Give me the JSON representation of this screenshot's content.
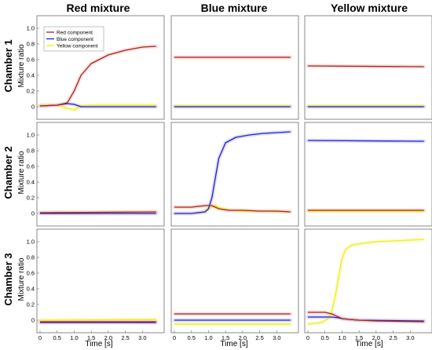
{
  "colors": {
    "red": "#a3261a",
    "blue": "#1f1fd0",
    "yellow": "#f0f000",
    "red_band": "#f6c6c6",
    "blue_band": "#c8c8f6",
    "yellow_band": "#f8f8bc"
  },
  "legend": [
    "Red component",
    "Blue component",
    "Yellow component"
  ],
  "col_titles": [
    "Red mixture",
    "Blue mixture",
    "Yellow mixture"
  ],
  "row_titles": [
    "Chamber 1",
    "Chamber 2",
    "Chamber 3"
  ],
  "ylabel": "Mixture ratio",
  "xlabel": "Time [s]",
  "xticks": [
    "0",
    "0.5",
    "1.0",
    "1.5",
    "2.0",
    "2.5",
    "3.0"
  ],
  "yticks": [
    "0",
    "0.2",
    "0.4",
    "0.6",
    "0.8",
    "1.0"
  ],
  "chart_data": [
    {
      "type": "line",
      "chamber": "Chamber 1",
      "mixture": "Red mixture",
      "xlim": [
        0,
        3.5
      ],
      "ylim": [
        -0.1,
        1.1
      ],
      "legend_position": "top-left",
      "series": [
        {
          "name": "Red component",
          "x": [
            0,
            0.5,
            0.8,
            1.0,
            1.2,
            1.5,
            2.0,
            2.5,
            3.0,
            3.4
          ],
          "values": [
            0.01,
            0.02,
            0.05,
            0.2,
            0.4,
            0.55,
            0.66,
            0.72,
            0.76,
            0.77
          ]
        },
        {
          "name": "Blue component",
          "x": [
            0,
            0.5,
            0.8,
            1.0,
            1.2,
            1.5,
            2.0,
            3.4
          ],
          "values": [
            0.01,
            0.02,
            0.04,
            0.03,
            0.0,
            0.0,
            0.0,
            0.0
          ]
        },
        {
          "name": "Yellow component",
          "x": [
            0,
            0.5,
            0.8,
            1.0,
            1.2,
            1.5,
            2.0,
            3.4
          ],
          "values": [
            0.02,
            0.02,
            -0.02,
            -0.04,
            0.01,
            0.02,
            0.02,
            0.02
          ]
        }
      ]
    },
    {
      "type": "line",
      "chamber": "Chamber 1",
      "mixture": "Blue mixture",
      "xlim": [
        0,
        3.5
      ],
      "ylim": [
        -0.1,
        1.1
      ],
      "series": [
        {
          "name": "Red component",
          "x": [
            0,
            3.4
          ],
          "values": [
            0.63,
            0.63
          ]
        },
        {
          "name": "Blue component",
          "x": [
            0,
            3.4
          ],
          "values": [
            0.0,
            0.0
          ]
        },
        {
          "name": "Yellow component",
          "x": [
            0,
            3.4
          ],
          "values": [
            0.01,
            0.01
          ]
        }
      ]
    },
    {
      "type": "line",
      "chamber": "Chamber 1",
      "mixture": "Yellow mixture",
      "xlim": [
        0,
        3.5
      ],
      "ylim": [
        -0.1,
        1.1
      ],
      "series": [
        {
          "name": "Red component",
          "x": [
            0,
            3.4
          ],
          "values": [
            0.52,
            0.51
          ]
        },
        {
          "name": "Blue component",
          "x": [
            0,
            3.4
          ],
          "values": [
            0.0,
            0.0
          ]
        },
        {
          "name": "Yellow component",
          "x": [
            0,
            3.4
          ],
          "values": [
            0.01,
            0.01
          ]
        }
      ]
    },
    {
      "type": "line",
      "chamber": "Chamber 2",
      "mixture": "Red mixture",
      "xlim": [
        0,
        3.5
      ],
      "ylim": [
        -0.1,
        1.1
      ],
      "series": [
        {
          "name": "Red component",
          "x": [
            0,
            3.4
          ],
          "values": [
            0.01,
            0.02
          ]
        },
        {
          "name": "Blue component",
          "x": [
            0,
            3.4
          ],
          "values": [
            0.0,
            0.0
          ]
        },
        {
          "name": "Yellow component",
          "x": [
            0,
            3.4
          ],
          "values": [
            0.01,
            0.02
          ]
        }
      ]
    },
    {
      "type": "line",
      "chamber": "Chamber 2",
      "mixture": "Blue mixture",
      "xlim": [
        0,
        3.5
      ],
      "ylim": [
        -0.1,
        1.1
      ],
      "series": [
        {
          "name": "Red component",
          "x": [
            0,
            0.5,
            0.9,
            1.1,
            1.3,
            1.6,
            2.0,
            2.5,
            3.0,
            3.4
          ],
          "values": [
            0.08,
            0.08,
            0.1,
            0.1,
            0.06,
            0.04,
            0.04,
            0.03,
            0.03,
            0.02
          ]
        },
        {
          "name": "Blue component",
          "x": [
            0,
            0.5,
            0.9,
            1.0,
            1.1,
            1.2,
            1.3,
            1.5,
            1.8,
            2.2,
            2.6,
            3.0,
            3.4
          ],
          "values": [
            0.0,
            0.0,
            0.02,
            0.06,
            0.2,
            0.45,
            0.7,
            0.9,
            0.97,
            1.0,
            1.02,
            1.03,
            1.04
          ]
        },
        {
          "name": "Yellow component",
          "x": [
            0,
            0.5,
            0.8,
            1.0,
            1.2,
            1.4,
            1.7,
            2.0,
            2.5,
            3.4
          ],
          "values": [
            0.0,
            0.0,
            0.01,
            0.06,
            0.1,
            0.06,
            0.04,
            0.03,
            0.03,
            0.02
          ]
        }
      ]
    },
    {
      "type": "line",
      "chamber": "Chamber 2",
      "mixture": "Yellow mixture",
      "xlim": [
        0,
        3.5
      ],
      "ylim": [
        -0.1,
        1.1
      ],
      "series": [
        {
          "name": "Red component",
          "x": [
            0,
            3.4
          ],
          "values": [
            0.04,
            0.04
          ]
        },
        {
          "name": "Blue component",
          "x": [
            0,
            3.4
          ],
          "values": [
            0.93,
            0.92
          ]
        },
        {
          "name": "Yellow component",
          "x": [
            0,
            3.4
          ],
          "values": [
            0.03,
            0.03
          ]
        }
      ]
    },
    {
      "type": "line",
      "chamber": "Chamber 3",
      "mixture": "Red mixture",
      "xlim": [
        0,
        3.5
      ],
      "ylim": [
        -0.1,
        1.1
      ],
      "series": [
        {
          "name": "Red component",
          "x": [
            0,
            3.4
          ],
          "values": [
            -0.02,
            -0.02
          ]
        },
        {
          "name": "Blue component",
          "x": [
            0,
            3.4
          ],
          "values": [
            -0.03,
            -0.03
          ]
        },
        {
          "name": "Yellow component",
          "x": [
            0,
            3.4
          ],
          "values": [
            0.0,
            0.01
          ]
        }
      ]
    },
    {
      "type": "line",
      "chamber": "Chamber 3",
      "mixture": "Blue mixture",
      "xlim": [
        0,
        3.5
      ],
      "ylim": [
        -0.1,
        1.1
      ],
      "series": [
        {
          "name": "Red component",
          "x": [
            0,
            3.4
          ],
          "values": [
            0.08,
            0.08
          ]
        },
        {
          "name": "Blue component",
          "x": [
            0,
            3.4
          ],
          "values": [
            0.0,
            0.0
          ]
        },
        {
          "name": "Yellow component",
          "x": [
            0,
            3.4
          ],
          "values": [
            -0.05,
            -0.05
          ]
        }
      ]
    },
    {
      "type": "line",
      "chamber": "Chamber 3",
      "mixture": "Yellow mixture",
      "xlim": [
        0,
        3.5
      ],
      "ylim": [
        -0.1,
        1.1
      ],
      "series": [
        {
          "name": "Red component",
          "x": [
            0,
            0.5,
            0.7,
            0.9,
            1.0,
            1.2,
            1.5,
            2.0,
            3.4
          ],
          "values": [
            0.1,
            0.1,
            0.08,
            0.04,
            0.02,
            0.01,
            0.0,
            -0.01,
            -0.02
          ]
        },
        {
          "name": "Blue component",
          "x": [
            0,
            0.5,
            0.7,
            0.9,
            1.0,
            1.2,
            1.5,
            3.4
          ],
          "values": [
            0.04,
            0.04,
            0.04,
            0.03,
            0.02,
            0.01,
            0.0,
            -0.01
          ]
        },
        {
          "name": "Yellow component",
          "x": [
            0,
            0.4,
            0.6,
            0.7,
            0.8,
            0.9,
            1.0,
            1.1,
            1.3,
            1.6,
            2.0,
            2.5,
            3.0,
            3.4
          ],
          "values": [
            -0.05,
            -0.03,
            0.02,
            0.12,
            0.3,
            0.55,
            0.78,
            0.9,
            0.96,
            0.98,
            1.0,
            1.01,
            1.02,
            1.03
          ]
        }
      ]
    }
  ]
}
